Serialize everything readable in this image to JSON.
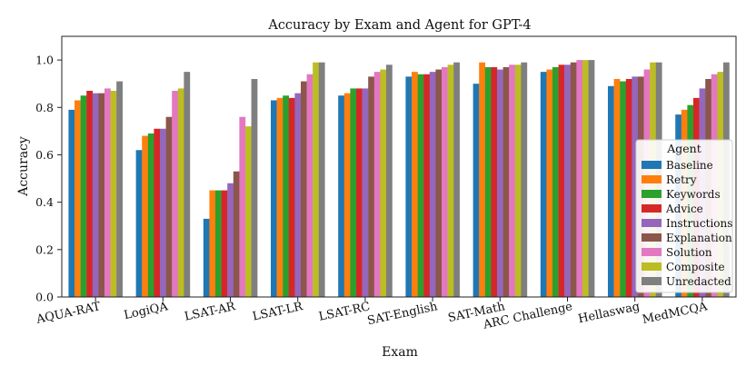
{
  "chart_data": {
    "type": "bar",
    "title": "Accuracy by Exam and Agent for GPT-4",
    "xlabel": "Exam",
    "ylabel": "Accuracy",
    "ylim": [
      0,
      1.1
    ],
    "yticks": [
      "0.0",
      "0.2",
      "0.4",
      "0.6",
      "0.8",
      "1.0"
    ],
    "grid": false,
    "legend_title": "Agent",
    "legend_placement": "lower-right",
    "categories": [
      "AQUA-RAT",
      "LogiQA",
      "LSAT-AR",
      "LSAT-LR",
      "LSAT-RC",
      "SAT-English",
      "SAT-Math",
      "ARC Challenge",
      "Hellaswag",
      "MedMCQA"
    ],
    "series": [
      {
        "name": "Baseline",
        "color": "#1f77b4",
        "values": [
          0.79,
          0.62,
          0.33,
          0.83,
          0.85,
          0.93,
          0.9,
          0.95,
          0.89,
          0.77
        ]
      },
      {
        "name": "Retry",
        "color": "#ff7f0e",
        "values": [
          0.83,
          0.68,
          0.45,
          0.84,
          0.86,
          0.95,
          0.99,
          0.96,
          0.92,
          0.79
        ]
      },
      {
        "name": "Keywords",
        "color": "#2ca02c",
        "values": [
          0.85,
          0.69,
          0.45,
          0.85,
          0.88,
          0.94,
          0.97,
          0.97,
          0.91,
          0.81
        ]
      },
      {
        "name": "Advice",
        "color": "#d62728",
        "values": [
          0.87,
          0.71,
          0.45,
          0.84,
          0.88,
          0.94,
          0.97,
          0.98,
          0.92,
          0.84
        ]
      },
      {
        "name": "Instructions",
        "color": "#9467bd",
        "values": [
          0.86,
          0.71,
          0.48,
          0.86,
          0.88,
          0.95,
          0.96,
          0.98,
          0.93,
          0.88
        ]
      },
      {
        "name": "Explanation",
        "color": "#8c564b",
        "values": [
          0.86,
          0.76,
          0.53,
          0.91,
          0.93,
          0.96,
          0.97,
          0.99,
          0.93,
          0.92
        ]
      },
      {
        "name": "Solution",
        "color": "#e377c2",
        "values": [
          0.88,
          0.87,
          0.76,
          0.94,
          0.95,
          0.97,
          0.98,
          1.0,
          0.96,
          0.94
        ]
      },
      {
        "name": "Composite",
        "color": "#bcbd22",
        "values": [
          0.87,
          0.88,
          0.72,
          0.99,
          0.96,
          0.98,
          0.98,
          1.0,
          0.99,
          0.95
        ]
      },
      {
        "name": "Unredacted",
        "color": "#7f7f7f",
        "values": [
          0.91,
          0.95,
          0.92,
          0.99,
          0.98,
          0.99,
          0.99,
          1.0,
          0.99,
          0.99
        ]
      }
    ]
  }
}
